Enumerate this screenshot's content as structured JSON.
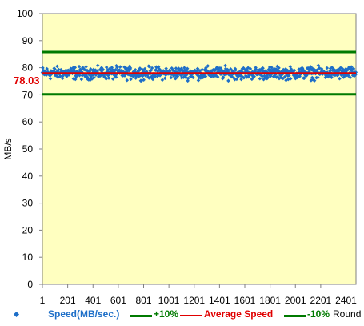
{
  "chart_data": {
    "type": "scatter",
    "title": "",
    "xlabel": "Round",
    "ylabel": "MB/s",
    "xlim": [
      1,
      2480
    ],
    "ylim": [
      0,
      100
    ],
    "y_ticks": [
      0,
      10,
      20,
      30,
      40,
      50,
      60,
      70,
      80,
      90,
      100
    ],
    "x_ticks": [
      1,
      201,
      401,
      601,
      801,
      1001,
      1201,
      1401,
      1601,
      1801,
      2001,
      2201,
      2401
    ],
    "grid": false,
    "legend_position": "bottom",
    "plot_background": "#FFFFC0",
    "average_label": "78.03",
    "series": [
      {
        "name": "Speed(MB/sec.)",
        "kind": "scatter",
        "color": "#1E6FC8",
        "point_count": 2480,
        "mean": 78.03,
        "min": 75.2,
        "max": 80.8
      },
      {
        "name": "+10%",
        "kind": "hline",
        "value": 85.8,
        "color": "#007A00"
      },
      {
        "name": "Average Speed",
        "kind": "hline",
        "value": 78.03,
        "color": "#E00000"
      },
      {
        "name": "-10%",
        "kind": "hline",
        "value": 70.2,
        "color": "#007A00"
      }
    ]
  }
}
